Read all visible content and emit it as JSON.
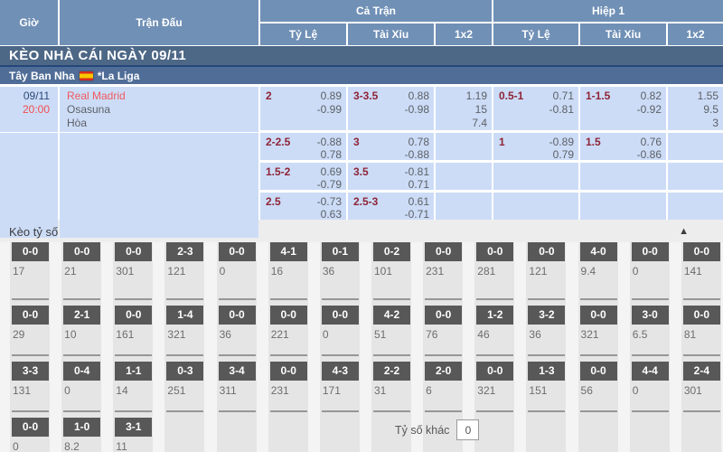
{
  "colors": {
    "header_blue": "#7090b6",
    "banner_blue": "#4d6786",
    "league_blue": "#4f6d97",
    "league_top_line": "#24477b",
    "row_blue": "#ccdcf7",
    "handicap_maroon": "#8e2436",
    "team_red": "#f0595d",
    "time_red": "#f34d4d",
    "date_navy": "#2b4a75",
    "odds_gray": "#5c6065",
    "section_bg": "#ededed",
    "section_cell": "#e5e5e5",
    "section_stripe": "#f4f4f4",
    "score_box_bg": "#585858",
    "score_value_gray": "#6d6d6d",
    "separator_gray": "#969696"
  },
  "header": {
    "time_col": "Giờ",
    "match_col": "Trận Đấu",
    "full_match": "Cả Trận",
    "first_half": "Hiệp 1",
    "sub_cols": [
      "Tỷ Lệ",
      "Tài Xỉu",
      "1x2"
    ]
  },
  "banner": {
    "title": "KÈO NHÀ CÁI NGÀY 09/11"
  },
  "league": {
    "country": "Tây Ban Nha",
    "name": "*La Liga",
    "flag": "spain-flag"
  },
  "match": {
    "date": "09/11",
    "time": "20:00",
    "home": "Real Madrid",
    "away": "Osasuna",
    "draw_label": "Hòa",
    "rows": [
      {
        "ft_hdp": {
          "line": "2",
          "odds": [
            "0.89",
            "-0.99"
          ]
        },
        "ft_ou": {
          "line": "3-3.5",
          "odds": [
            "0.88",
            "-0.98"
          ]
        },
        "ft_1x2": [
          "1.19",
          "15",
          "7.4"
        ],
        "h1_hdp": {
          "line": "0.5-1",
          "odds": [
            "0.71",
            "-0.81"
          ]
        },
        "h1_ou": {
          "line": "1-1.5",
          "odds": [
            "0.82",
            "-0.92"
          ]
        },
        "h1_1x2": [
          "1.55",
          "9.5",
          "3"
        ]
      },
      {
        "ft_hdp": {
          "line": "2-2.5",
          "odds": [
            "-0.88",
            "0.78"
          ]
        },
        "ft_ou": {
          "line": "3",
          "odds": [
            "0.78",
            "-0.88"
          ]
        },
        "ft_1x2": null,
        "h1_hdp": {
          "line": "1",
          "odds": [
            "-0.89",
            "0.79"
          ]
        },
        "h1_ou": {
          "line": "1.5",
          "odds": [
            "0.76",
            "-0.86"
          ]
        },
        "h1_1x2": null
      },
      {
        "ft_hdp": {
          "line": "1.5-2",
          "odds": [
            "0.69",
            "-0.79"
          ]
        },
        "ft_ou": {
          "line": "3.5",
          "odds": [
            "-0.81",
            "0.71"
          ]
        },
        "ft_1x2": null,
        "h1_hdp": null,
        "h1_ou": null,
        "h1_1x2": null
      },
      {
        "ft_hdp": {
          "line": "2.5",
          "odds": [
            "-0.73",
            "0.63"
          ]
        },
        "ft_ou": {
          "line": "2.5-3",
          "odds": [
            "0.61",
            "-0.71"
          ]
        },
        "ft_1x2": null,
        "h1_hdp": null,
        "h1_ou": null,
        "h1_1x2": null
      }
    ]
  },
  "score_section": {
    "title": "Kèo tỷ số",
    "collapse_icon": "chevron-up",
    "rows": [
      [
        {
          "score": "0-0",
          "odd": "17"
        },
        {
          "score": "0-0",
          "odd": "21"
        },
        {
          "score": "0-0",
          "odd": "301"
        },
        {
          "score": "2-3",
          "odd": "121"
        },
        {
          "score": "0-0",
          "odd": "0"
        },
        {
          "score": "4-1",
          "odd": "16"
        },
        {
          "score": "0-1",
          "odd": "36"
        },
        {
          "score": "0-2",
          "odd": "101"
        },
        {
          "score": "0-0",
          "odd": "231"
        },
        {
          "score": "0-0",
          "odd": "281"
        },
        {
          "score": "0-0",
          "odd": "121"
        },
        {
          "score": "4-0",
          "odd": "9.4"
        },
        {
          "score": "0-0",
          "odd": "0"
        },
        {
          "score": "0-0",
          "odd": "141"
        }
      ],
      [
        {
          "score": "0-0",
          "odd": "29"
        },
        {
          "score": "2-1",
          "odd": "10"
        },
        {
          "score": "0-0",
          "odd": "161"
        },
        {
          "score": "1-4",
          "odd": "321"
        },
        {
          "score": "0-0",
          "odd": "36"
        },
        {
          "score": "0-0",
          "odd": "221"
        },
        {
          "score": "0-0",
          "odd": "0"
        },
        {
          "score": "4-2",
          "odd": "51"
        },
        {
          "score": "0-0",
          "odd": "76"
        },
        {
          "score": "1-2",
          "odd": "46"
        },
        {
          "score": "3-2",
          "odd": "36"
        },
        {
          "score": "0-0",
          "odd": "321"
        },
        {
          "score": "3-0",
          "odd": "6.5"
        },
        {
          "score": "0-0",
          "odd": "81"
        }
      ],
      [
        {
          "score": "3-3",
          "odd": "131"
        },
        {
          "score": "0-4",
          "odd": "0"
        },
        {
          "score": "1-1",
          "odd": "14"
        },
        {
          "score": "0-3",
          "odd": "251"
        },
        {
          "score": "3-4",
          "odd": "311"
        },
        {
          "score": "0-0",
          "odd": "231"
        },
        {
          "score": "4-3",
          "odd": "171"
        },
        {
          "score": "2-2",
          "odd": "31"
        },
        {
          "score": "2-0",
          "odd": "6"
        },
        {
          "score": "0-0",
          "odd": "321"
        },
        {
          "score": "1-3",
          "odd": "151"
        },
        {
          "score": "0-0",
          "odd": "56"
        },
        {
          "score": "4-4",
          "odd": "0"
        },
        {
          "score": "2-4",
          "odd": "301"
        }
      ],
      [
        {
          "score": "0-0",
          "odd": "0"
        },
        {
          "score": "1-0",
          "odd": "8.2"
        },
        {
          "score": "3-1",
          "odd": "11"
        },
        null,
        null,
        null,
        null,
        null,
        null,
        null,
        null,
        null,
        null,
        null
      ]
    ],
    "other_score_label": "Tỷ số khác",
    "other_score_value": "0"
  }
}
